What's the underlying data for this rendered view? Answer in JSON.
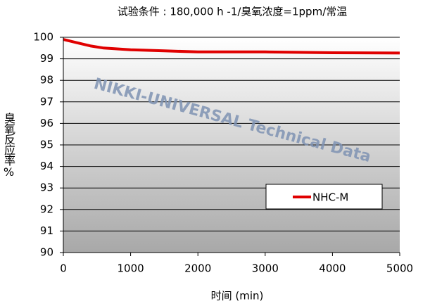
{
  "chart_data": {
    "type": "line",
    "title": "试验条件 : 180,000 h -1/臭氧浓度=1ppm/常温",
    "x_label": "时间 (min)",
    "y_label": "臭氧反应率%",
    "watermark": "NIKKI-UNIVERSAL Technical Data",
    "x": [
      0,
      200,
      400,
      600,
      1000,
      1500,
      2000,
      3000,
      4000,
      5000
    ],
    "series": [
      {
        "name": "NHC-M",
        "color": "#e00000",
        "values": [
          99.9,
          99.75,
          99.6,
          99.5,
          99.42,
          99.37,
          99.32,
          99.32,
          99.28,
          99.27
        ]
      }
    ],
    "xlim": [
      0,
      5000
    ],
    "xticks": [
      0,
      1000,
      2000,
      3000,
      4000,
      5000
    ],
    "ylim": [
      90,
      100
    ],
    "yticks": [
      90,
      91,
      92,
      93,
      94,
      95,
      96,
      97,
      98,
      99,
      100
    ],
    "grid": true,
    "legend": "right"
  }
}
